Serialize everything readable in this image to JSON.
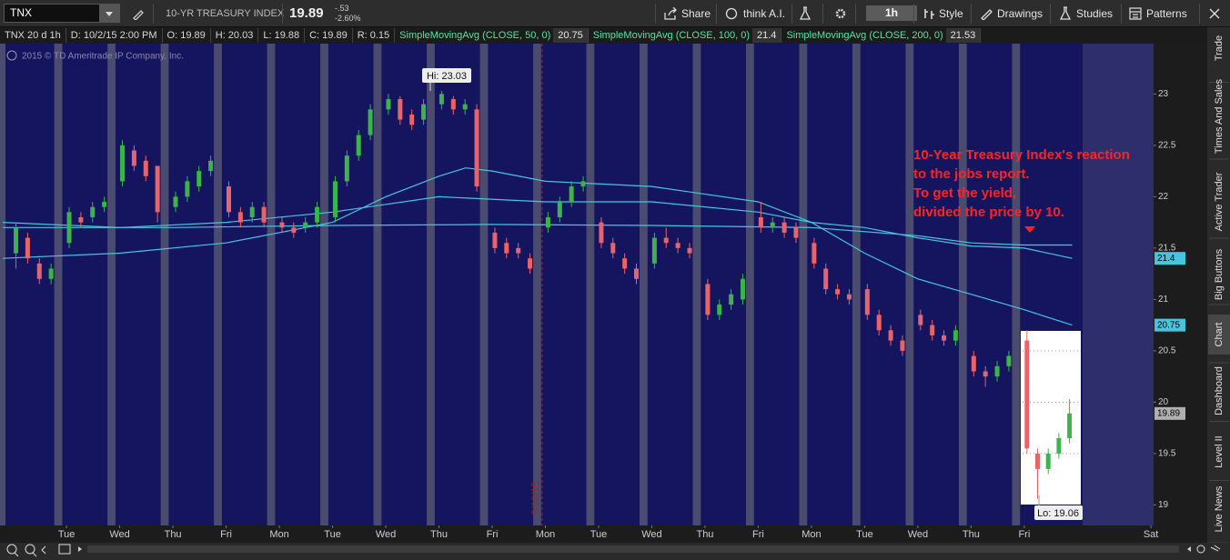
{
  "toolbar": {
    "symbol": "TNX",
    "description": "10-YR TREASURY INDEX",
    "last": "19.89",
    "change": "-.53",
    "change_pct": "-2.60%",
    "share": "Share",
    "think_ai": "think A.I.",
    "timeframe": "1h",
    "style": "Style",
    "drawings": "Drawings",
    "studies": "Studies",
    "patterns": "Patterns"
  },
  "info_bar": {
    "chart_spec": "TNX 20 d 1h",
    "date": "D: 10/2/15 2:00 PM",
    "open": "O: 19.89",
    "high": "H: 20.03",
    "low": "L: 19.88",
    "close": "C: 19.89",
    "range": "R: 0.15"
  },
  "copyright": "2015 © TD Ameritrade IP Company, Inc.",
  "side_tabs": [
    "Trade",
    "Times And Sales",
    "Active Trader",
    "Big Buttons",
    "Chart",
    "Dashboard",
    "Level II",
    "Live News"
  ],
  "chart_data": {
    "type": "candlestick",
    "up_color": "#3cb44b",
    "down_color": "#e8646a",
    "x": [
      -0.95,
      -0.73,
      -0.51,
      -0.29,
      0.05,
      0.27,
      0.49,
      0.71,
      1.05,
      1.27,
      1.49,
      1.71,
      2.05,
      2.27,
      2.49,
      2.71,
      3.05,
      3.27,
      3.49,
      3.71,
      4.05,
      4.27,
      4.49,
      4.71,
      5.05,
      5.27,
      5.49,
      5.71,
      6.05,
      6.27,
      6.49,
      6.71,
      7.05,
      7.27,
      7.49,
      7.71,
      8.05,
      8.27,
      8.49,
      8.71,
      9.05,
      9.27,
      9.49,
      9.71,
      10.05,
      10.27,
      10.49,
      10.71,
      11.05,
      11.27,
      11.49,
      11.71,
      12.05,
      12.27,
      12.49,
      12.71,
      13.05,
      13.27,
      13.49,
      13.71,
      14.05,
      14.27,
      14.49,
      14.71,
      15.05,
      15.27,
      15.49,
      15.71,
      16.05,
      16.27,
      16.49,
      16.71,
      17.05,
      17.27,
      17.49,
      17.71,
      18.05,
      18.25,
      18.45,
      18.65,
      18.85
    ],
    "open": [
      21.45,
      21.6,
      21.35,
      21.2,
      21.55,
      21.8,
      21.8,
      21.9,
      22.15,
      22.45,
      22.35,
      22.3,
      21.9,
      22.0,
      22.1,
      22.25,
      22.1,
      21.85,
      21.8,
      21.9,
      21.75,
      21.7,
      21.7,
      21.75,
      21.8,
      22.15,
      22.4,
      22.6,
      22.85,
      22.95,
      22.8,
      22.75,
      22.9,
      22.95,
      22.85,
      22.85,
      21.65,
      21.55,
      21.5,
      21.4,
      21.7,
      21.8,
      21.95,
      22.1,
      21.75,
      21.55,
      21.4,
      21.3,
      21.35,
      21.6,
      21.55,
      21.5,
      21.15,
      20.85,
      20.95,
      21.0,
      21.8,
      21.7,
      21.75,
      21.7,
      21.55,
      21.3,
      21.1,
      21.05,
      21.1,
      20.85,
      20.7,
      20.6,
      20.85,
      20.75,
      20.65,
      20.6,
      20.45,
      20.3,
      20.25,
      20.35,
      20.6,
      19.5,
      19.35,
      19.5,
      19.65
    ],
    "high": [
      21.75,
      21.65,
      21.4,
      21.35,
      21.9,
      21.85,
      21.95,
      22.0,
      22.55,
      22.5,
      22.4,
      22.3,
      22.05,
      22.2,
      22.3,
      22.4,
      22.15,
      21.9,
      21.95,
      21.95,
      21.8,
      21.75,
      21.8,
      21.95,
      22.2,
      22.45,
      22.65,
      22.9,
      23.0,
      22.98,
      22.85,
      22.95,
      23.03,
      22.98,
      22.95,
      22.9,
      21.7,
      21.6,
      21.55,
      21.45,
      21.85,
      22.0,
      22.15,
      22.2,
      21.8,
      21.6,
      21.45,
      21.35,
      21.65,
      21.7,
      21.6,
      21.55,
      21.2,
      21.0,
      21.1,
      21.25,
      21.95,
      21.8,
      21.8,
      21.75,
      21.6,
      21.35,
      21.15,
      21.1,
      21.15,
      20.9,
      20.75,
      20.65,
      20.9,
      20.8,
      20.7,
      20.75,
      20.5,
      20.35,
      20.4,
      20.5,
      20.7,
      19.55,
      19.55,
      19.7,
      20.03
    ],
    "low": [
      21.3,
      21.35,
      21.15,
      21.15,
      21.5,
      21.7,
      21.75,
      21.85,
      22.1,
      22.25,
      22.15,
      21.75,
      21.85,
      21.95,
      22.05,
      22.2,
      21.8,
      21.7,
      21.75,
      21.7,
      21.65,
      21.6,
      21.65,
      21.7,
      21.75,
      22.1,
      22.35,
      22.55,
      22.8,
      22.7,
      22.65,
      22.7,
      22.85,
      22.8,
      22.8,
      22.05,
      21.45,
      21.4,
      21.4,
      21.25,
      21.65,
      21.75,
      21.9,
      22.05,
      21.5,
      21.4,
      21.25,
      21.15,
      21.3,
      21.5,
      21.45,
      21.4,
      20.8,
      20.8,
      20.9,
      20.95,
      21.65,
      21.65,
      21.6,
      21.55,
      21.3,
      21.05,
      21.0,
      20.95,
      20.8,
      20.65,
      20.55,
      20.45,
      20.7,
      20.6,
      20.55,
      20.55,
      20.25,
      20.15,
      20.2,
      20.3,
      19.5,
      19.06,
      19.3,
      19.45,
      19.6
    ],
    "close": [
      21.7,
      21.4,
      21.2,
      21.3,
      21.85,
      21.75,
      21.9,
      21.95,
      22.5,
      22.3,
      22.2,
      21.85,
      22.0,
      22.15,
      22.25,
      22.35,
      21.85,
      21.75,
      21.9,
      21.75,
      21.7,
      21.65,
      21.75,
      21.9,
      22.15,
      22.4,
      22.6,
      22.85,
      22.95,
      22.75,
      22.7,
      22.9,
      23.0,
      22.85,
      22.9,
      22.1,
      21.5,
      21.45,
      21.45,
      21.3,
      21.8,
      21.95,
      22.1,
      22.15,
      21.55,
      21.45,
      21.3,
      21.2,
      21.6,
      21.55,
      21.5,
      21.45,
      20.85,
      20.95,
      21.05,
      21.2,
      21.7,
      21.75,
      21.65,
      21.6,
      21.35,
      21.1,
      21.05,
      21.0,
      20.85,
      20.7,
      20.6,
      20.5,
      20.75,
      20.65,
      20.6,
      20.7,
      20.3,
      20.25,
      20.35,
      20.45,
      19.55,
      19.35,
      19.5,
      19.65,
      19.89
    ],
    "last_price": 19.89,
    "series": [
      {
        "name": "SimpleMovingAvg (CLOSE, 50, 0)",
        "color": "#45c6dc",
        "last_value": 20.75,
        "x": [
          -1.2,
          1,
          3,
          5,
          6,
          7,
          7.5,
          8,
          9,
          11,
          13,
          14,
          15,
          16,
          17,
          18,
          18.9
        ],
        "values": [
          21.4,
          21.45,
          21.55,
          21.75,
          22.0,
          22.2,
          22.28,
          22.25,
          22.15,
          22.1,
          21.95,
          21.75,
          21.45,
          21.2,
          21.05,
          20.9,
          20.75
        ]
      },
      {
        "name": "SimpleMovingAvg (CLOSE, 100, 0)",
        "color": "#45c6dc",
        "last_value": 21.4,
        "x": [
          -1.2,
          1,
          3,
          5,
          7,
          9,
          11,
          13,
          14,
          15,
          16,
          17,
          18,
          18.9
        ],
        "values": [
          21.75,
          21.7,
          21.75,
          21.85,
          22.0,
          21.95,
          21.95,
          21.85,
          21.75,
          21.7,
          21.6,
          21.52,
          21.5,
          21.4
        ]
      },
      {
        "name": "SimpleMovingAvg (CLOSE, 200, 0)",
        "color": "#45c6dc",
        "last_value": 21.53,
        "x": [
          -1.2,
          2,
          5,
          8,
          11,
          14,
          16,
          17,
          18,
          18.9
        ],
        "values": [
          21.7,
          21.7,
          21.72,
          21.73,
          21.72,
          21.7,
          21.62,
          21.55,
          21.53,
          21.53
        ]
      }
    ],
    "ylim": [
      18.8,
      23.49
    ],
    "yticks": [
      19,
      19.5,
      20,
      20.5,
      21,
      21.5,
      22,
      22.5,
      23
    ],
    "xlim": [
      -1.25,
      20.43
    ],
    "xticks": [
      {
        "value": 0,
        "label": "Tue"
      },
      {
        "value": 1,
        "label": "Wed"
      },
      {
        "value": 2,
        "label": "Thu"
      },
      {
        "value": 3,
        "label": "Fri"
      },
      {
        "value": 4,
        "label": "Mon"
      },
      {
        "value": 5,
        "label": "Tue"
      },
      {
        "value": 6,
        "label": "Wed"
      },
      {
        "value": 7,
        "label": "Thu"
      },
      {
        "value": 8,
        "label": "Fri"
      },
      {
        "value": 9,
        "label": "Mon"
      },
      {
        "value": 10,
        "label": "Tue"
      },
      {
        "value": 11,
        "label": "Wed"
      },
      {
        "value": 12,
        "label": "Thu"
      },
      {
        "value": 13,
        "label": "Fri"
      },
      {
        "value": 14,
        "label": "Mon"
      },
      {
        "value": 15,
        "label": "Tue"
      },
      {
        "value": 16,
        "label": "Wed"
      },
      {
        "value": 17,
        "label": "Thu"
      },
      {
        "value": 18,
        "label": "Fri"
      },
      {
        "value": 20.38,
        "label": "Sat"
      }
    ],
    "annotations": {
      "high_label": "Hi: 23.03",
      "low_label": "Lo: 19.06",
      "date_marker": "9/18/15",
      "note": [
        "10-Year Treasury Index's reaction",
        "to the jobs report.",
        "To get the yield,",
        "divided the price by 10."
      ]
    }
  }
}
